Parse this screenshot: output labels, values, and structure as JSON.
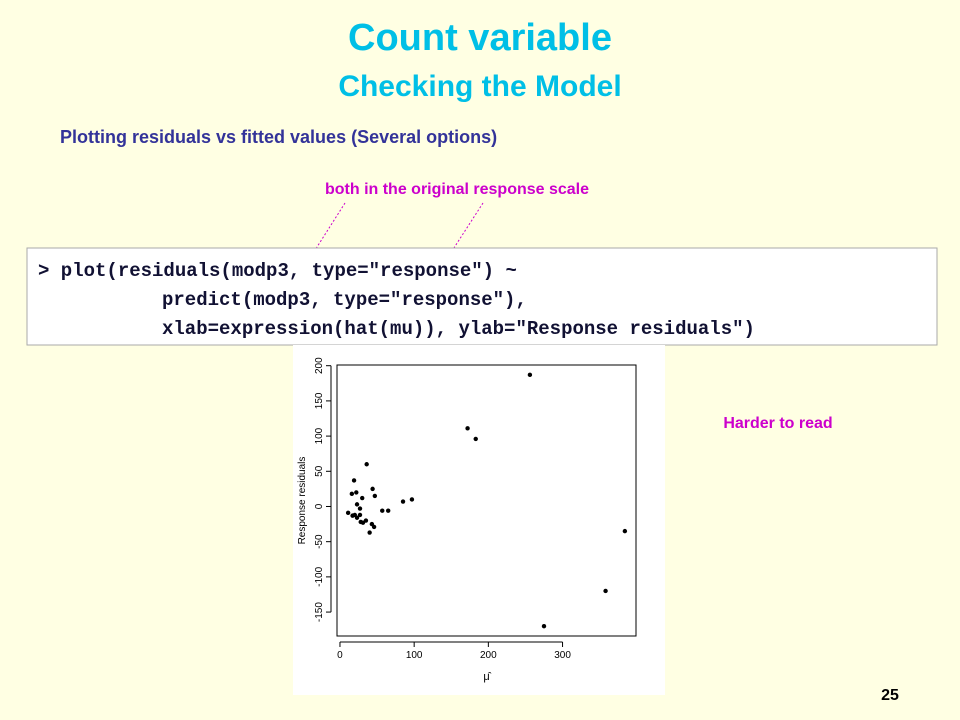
{
  "slide": {
    "title": "Count variable",
    "subtitle": "Checking the Model",
    "heading": "Plotting residuals vs fitted values (Several options)",
    "annotation": "both in the original response scale",
    "code": [
      "> plot(residuals(modp3, type=\"response\") ~",
      "predict(modp3, type=\"response\"),",
      "xlab=expression(hat(mu)), ylab=\"Response residuals\")"
    ],
    "note": "Harder to read",
    "page_number": "25"
  },
  "chart_data": {
    "type": "scatter",
    "x_label": "μ̂",
    "y_label": "Response residuals",
    "color": "#000000",
    "x": [
      256,
      172,
      183,
      384,
      358,
      275,
      97,
      85,
      65,
      57,
      36,
      44,
      47,
      19,
      16,
      22,
      30,
      23,
      27,
      11,
      17,
      23,
      20,
      27,
      28,
      35,
      31,
      43,
      40,
      46
    ],
    "values": [
      187,
      111,
      96,
      -35,
      -120,
      -170,
      10,
      7,
      -6,
      -6,
      60,
      25,
      15,
      37,
      18,
      20,
      12,
      3,
      -3,
      -9,
      -13,
      -16,
      -12,
      -12,
      -22,
      -20,
      -23,
      -25,
      -37,
      -29
    ],
    "xlim": [
      -4,
      399
    ],
    "ylim": [
      -184,
      201
    ],
    "xticks": [
      0,
      100,
      200,
      300
    ],
    "yticks": [
      -150,
      -100,
      -50,
      0,
      50,
      100,
      150,
      200
    ]
  }
}
